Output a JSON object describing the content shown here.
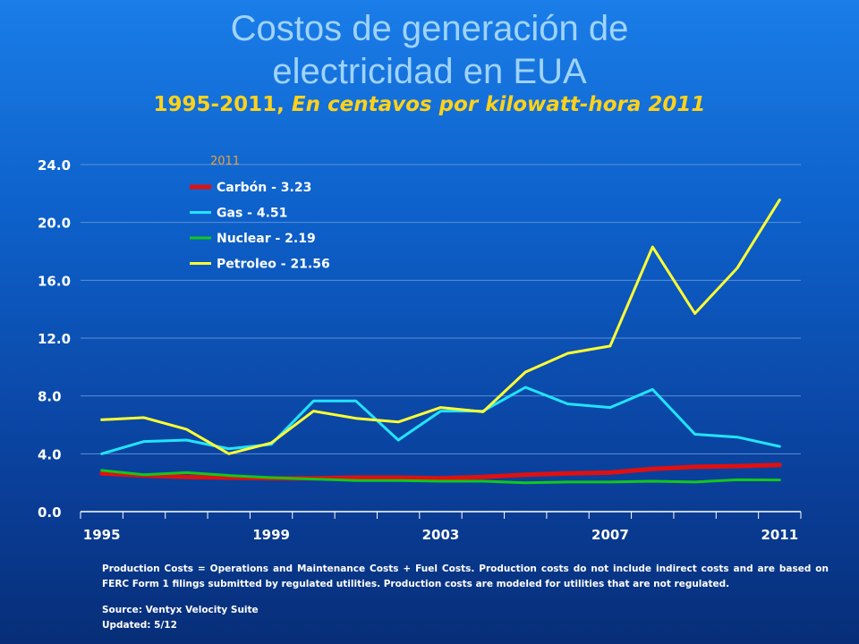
{
  "title_line1": "Costos de generación de",
  "title_line2": "electricidad en EUA",
  "subtitle_normal": "1995-2011, ",
  "subtitle_italic": "En  centavos por kilowatt-hora 2011",
  "colors": {
    "Carbón": "#e01010",
    "Gas": "#22e4ff",
    "Nuclear": "#12c81a",
    "Petroleo": "#ffff33",
    "axis_text": "#ffffff",
    "legend_title": "#e6a23c"
  },
  "chart_data": {
    "type": "line",
    "x": [
      1995,
      1996,
      1997,
      1998,
      1999,
      2000,
      2001,
      2002,
      2003,
      2004,
      2005,
      2006,
      2007,
      2008,
      2009,
      2010,
      2011
    ],
    "xticks": [
      "1995",
      "1999",
      "2003",
      "2007",
      "2011"
    ],
    "yticks": [
      "0.0",
      "4.0",
      "8.0",
      "12.0",
      "16.0",
      "20.0",
      "24.0"
    ],
    "ylim": [
      0,
      24
    ],
    "legend_title": "2011",
    "legend_position": "top-left",
    "grid": "horizontal",
    "series": [
      {
        "name": "Carbón - 3.23",
        "key": "Carbón",
        "values": [
          2.65,
          2.5,
          2.4,
          2.35,
          2.3,
          2.3,
          2.35,
          2.35,
          2.3,
          2.4,
          2.55,
          2.65,
          2.7,
          2.95,
          3.1,
          3.15,
          3.23
        ]
      },
      {
        "name": "Gas - 4.51",
        "key": "Gas",
        "values": [
          4.0,
          4.85,
          4.95,
          4.35,
          4.65,
          7.65,
          7.65,
          4.95,
          6.95,
          6.95,
          8.6,
          7.45,
          7.2,
          8.45,
          5.35,
          5.15,
          4.51
        ]
      },
      {
        "name": "Nuclear - 2.19",
        "key": "Nuclear",
        "values": [
          2.85,
          2.55,
          2.7,
          2.5,
          2.35,
          2.25,
          2.15,
          2.15,
          2.1,
          2.1,
          2.0,
          2.05,
          2.05,
          2.1,
          2.05,
          2.2,
          2.19
        ]
      },
      {
        "name": "Petroleo - 21.56",
        "key": "Petroleo",
        "values": [
          6.35,
          6.5,
          5.7,
          4.0,
          4.75,
          6.95,
          6.45,
          6.2,
          7.2,
          6.9,
          9.65,
          10.95,
          11.45,
          18.3,
          13.7,
          16.85,
          21.56
        ]
      }
    ]
  },
  "footnote": "Production Costs = Operations and Maintenance Costs + Fuel Costs. Production costs do not include indirect costs and are based on FERC Form 1 filings submitted by regulated utilities. Production costs are modeled for utilities that are not regulated.",
  "source": "Source: Ventyx Velocity Suite",
  "updated": "Updated: 5/12"
}
